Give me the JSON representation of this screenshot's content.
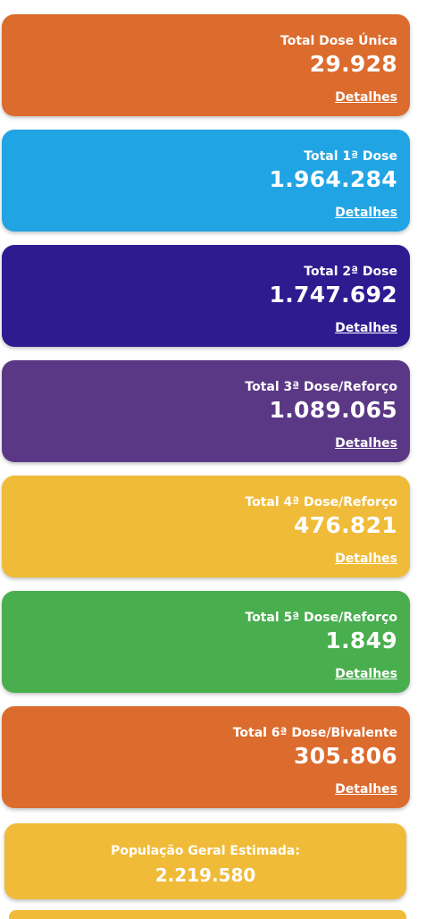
{
  "cards": [
    {
      "label": "Total Dose Única",
      "value": "29.928",
      "details": "Detalhes",
      "color": "#DC6B2E"
    },
    {
      "label": "Total 1ª Dose",
      "value": "1.964.284",
      "details": "Detalhes",
      "color": "#21A4E3"
    },
    {
      "label": "Total 2ª Dose",
      "value": "1.747.692",
      "details": "Detalhes",
      "color": "#2E1B8F"
    },
    {
      "label": "Total 3ª Dose/Reforço",
      "value": "1.089.065",
      "details": "Detalhes",
      "color": "#5B3885"
    },
    {
      "label": "Total 4ª Dose/Reforço",
      "value": "476.821",
      "details": "Detalhes",
      "color": "#F0BB38"
    },
    {
      "label": "Total 5ª Dose/Reforço",
      "value": "1.849",
      "details": "Detalhes",
      "color": "#49AE4E"
    },
    {
      "label": "Total 6ª Dose/Bivalente",
      "value": "305.806",
      "details": "Detalhes",
      "color": "#DC6B2E"
    }
  ],
  "population": {
    "label": "População Geral Estimada:",
    "value": "2.219.580",
    "color": "#F0BB38"
  }
}
